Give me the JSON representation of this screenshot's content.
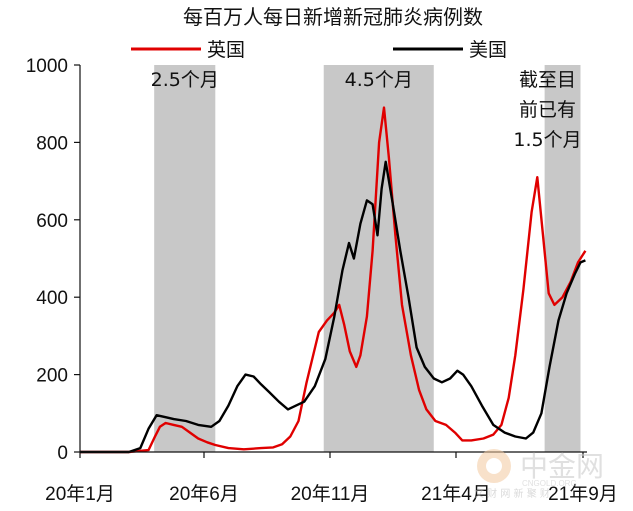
{
  "chart_data": {
    "type": "line",
    "title": "每百万人每日新增新冠肺炎病例数",
    "ylim": [
      0,
      1000
    ],
    "yticks": [
      "1000",
      "800",
      "600",
      "400",
      "200",
      "0"
    ],
    "xticks": [
      "20年1月",
      "20年6月",
      "20年11月",
      "21年4月",
      "21年9月"
    ],
    "colors": {
      "英国": "#e00000",
      "美国": "#000000",
      "shade": "#c8c8c8"
    },
    "shaded_periods": [
      {
        "start": "2020-04-01",
        "end": "2020-06-15",
        "label": "2.5个月"
      },
      {
        "start": "2020-10-26",
        "end": "2021-03-10",
        "label": "4.5个月"
      },
      {
        "start": "2021-07-24",
        "end": "2021-09-06",
        "label": [
          "截至目",
          "前已有",
          "1.5个月"
        ]
      }
    ],
    "series": [
      {
        "name": "英国",
        "points": [
          [
            "2020-01-01",
            0
          ],
          [
            "2020-03-01",
            0
          ],
          [
            "2020-03-25",
            5
          ],
          [
            "2020-04-02",
            40
          ],
          [
            "2020-04-08",
            65
          ],
          [
            "2020-04-15",
            75
          ],
          [
            "2020-04-25",
            70
          ],
          [
            "2020-05-05",
            65
          ],
          [
            "2020-05-15",
            50
          ],
          [
            "2020-05-25",
            35
          ],
          [
            "2020-06-05",
            25
          ],
          [
            "2020-06-15",
            18
          ],
          [
            "2020-07-01",
            10
          ],
          [
            "2020-07-20",
            7
          ],
          [
            "2020-08-10",
            10
          ],
          [
            "2020-08-25",
            12
          ],
          [
            "2020-09-05",
            20
          ],
          [
            "2020-09-15",
            40
          ],
          [
            "2020-09-25",
            80
          ],
          [
            "2020-10-05",
            180
          ],
          [
            "2020-10-20",
            310
          ],
          [
            "2020-10-30",
            340
          ],
          [
            "2020-11-08",
            360
          ],
          [
            "2020-11-14",
            380
          ],
          [
            "2020-11-20",
            330
          ],
          [
            "2020-11-27",
            260
          ],
          [
            "2020-12-05",
            220
          ],
          [
            "2020-12-10",
            250
          ],
          [
            "2020-12-18",
            350
          ],
          [
            "2020-12-25",
            520
          ],
          [
            "2021-01-02",
            800
          ],
          [
            "2021-01-08",
            890
          ],
          [
            "2021-01-14",
            760
          ],
          [
            "2021-01-22",
            560
          ],
          [
            "2021-01-30",
            380
          ],
          [
            "2021-02-10",
            250
          ],
          [
            "2021-02-20",
            160
          ],
          [
            "2021-03-01",
            110
          ],
          [
            "2021-03-12",
            80
          ],
          [
            "2021-03-25",
            70
          ],
          [
            "2021-04-05",
            50
          ],
          [
            "2021-04-14",
            30
          ],
          [
            "2021-04-25",
            30
          ],
          [
            "2021-05-10",
            35
          ],
          [
            "2021-05-22",
            45
          ],
          [
            "2021-06-01",
            70
          ],
          [
            "2021-06-10",
            140
          ],
          [
            "2021-06-18",
            250
          ],
          [
            "2021-06-28",
            420
          ],
          [
            "2021-07-08",
            620
          ],
          [
            "2021-07-15",
            710
          ],
          [
            "2021-07-22",
            560
          ],
          [
            "2021-07-29",
            410
          ],
          [
            "2021-08-05",
            380
          ],
          [
            "2021-08-15",
            400
          ],
          [
            "2021-08-25",
            440
          ],
          [
            "2021-09-03",
            490
          ],
          [
            "2021-09-12",
            520
          ]
        ]
      },
      {
        "name": "美国",
        "points": [
          [
            "2020-01-01",
            0
          ],
          [
            "2020-03-01",
            0
          ],
          [
            "2020-03-15",
            10
          ],
          [
            "2020-03-25",
            60
          ],
          [
            "2020-04-04",
            95
          ],
          [
            "2020-04-15",
            90
          ],
          [
            "2020-04-25",
            85
          ],
          [
            "2020-05-10",
            80
          ],
          [
            "2020-05-25",
            70
          ],
          [
            "2020-06-10",
            65
          ],
          [
            "2020-06-20",
            80
          ],
          [
            "2020-07-01",
            120
          ],
          [
            "2020-07-12",
            170
          ],
          [
            "2020-07-22",
            200
          ],
          [
            "2020-08-01",
            195
          ],
          [
            "2020-08-10",
            175
          ],
          [
            "2020-08-20",
            155
          ],
          [
            "2020-09-01",
            130
          ],
          [
            "2020-09-12",
            110
          ],
          [
            "2020-09-22",
            120
          ],
          [
            "2020-10-02",
            130
          ],
          [
            "2020-10-15",
            170
          ],
          [
            "2020-10-28",
            240
          ],
          [
            "2020-11-08",
            350
          ],
          [
            "2020-11-18",
            470
          ],
          [
            "2020-11-26",
            540
          ],
          [
            "2020-12-02",
            500
          ],
          [
            "2020-12-10",
            590
          ],
          [
            "2020-12-18",
            650
          ],
          [
            "2020-12-25",
            640
          ],
          [
            "2020-12-31",
            560
          ],
          [
            "2021-01-05",
            680
          ],
          [
            "2021-01-10",
            750
          ],
          [
            "2021-01-18",
            650
          ],
          [
            "2021-01-28",
            520
          ],
          [
            "2021-02-07",
            400
          ],
          [
            "2021-02-17",
            270
          ],
          [
            "2021-02-27",
            220
          ],
          [
            "2021-03-10",
            190
          ],
          [
            "2021-03-20",
            180
          ],
          [
            "2021-03-30",
            190
          ],
          [
            "2021-04-08",
            210
          ],
          [
            "2021-04-15",
            200
          ],
          [
            "2021-04-25",
            170
          ],
          [
            "2021-05-08",
            120
          ],
          [
            "2021-05-22",
            70
          ],
          [
            "2021-06-05",
            50
          ],
          [
            "2021-06-18",
            40
          ],
          [
            "2021-07-01",
            35
          ],
          [
            "2021-07-10",
            50
          ],
          [
            "2021-07-20",
            100
          ],
          [
            "2021-07-30",
            220
          ],
          [
            "2021-08-10",
            340
          ],
          [
            "2021-08-20",
            410
          ],
          [
            "2021-08-30",
            460
          ],
          [
            "2021-09-06",
            490
          ],
          [
            "2021-09-12",
            495
          ]
        ]
      }
    ]
  },
  "watermark": {
    "brand": "中金网",
    "sub": "CNGOLD.ORG",
    "sub2": "文 财 网 新 聚 财"
  }
}
